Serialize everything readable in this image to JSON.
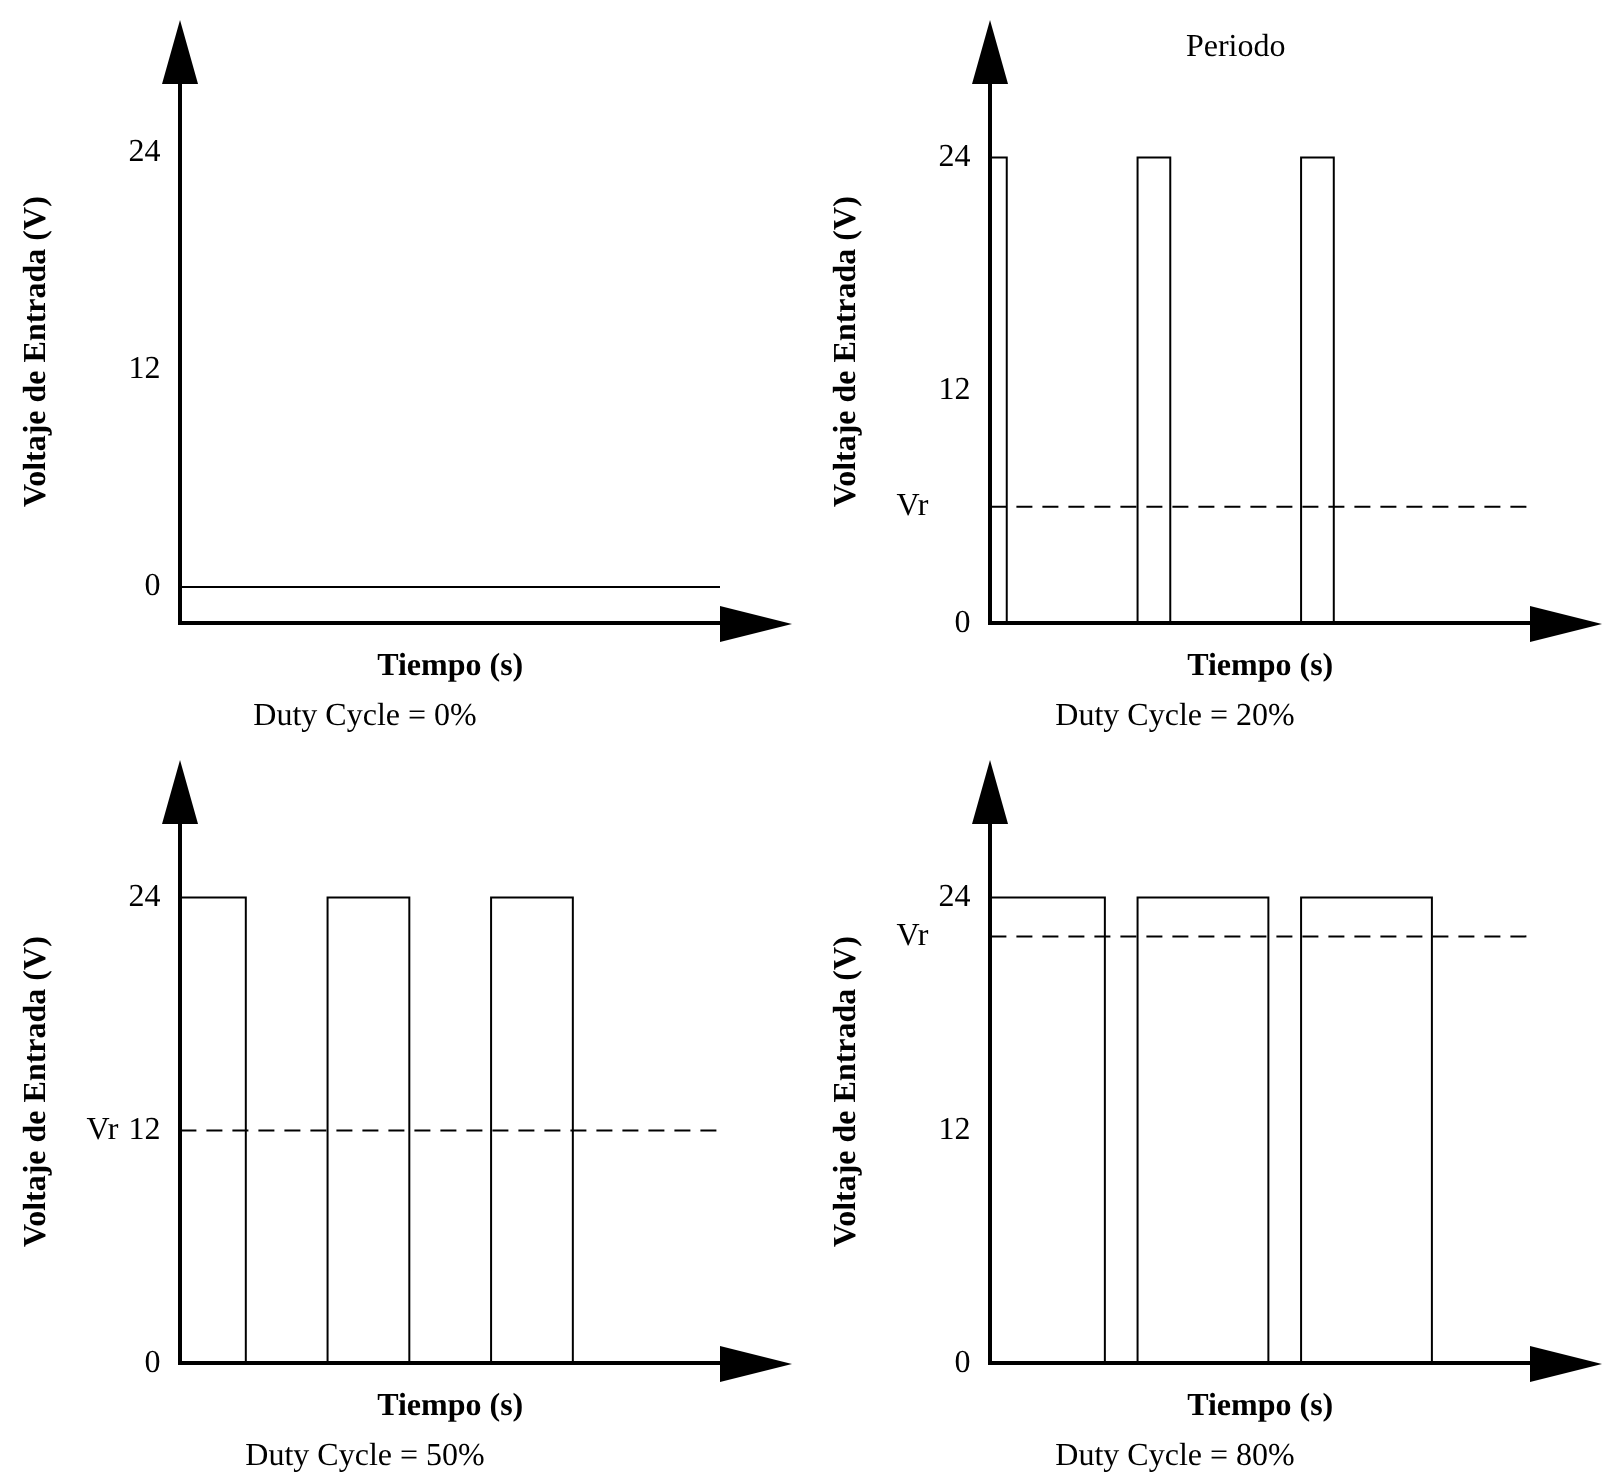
{
  "chart_data": [
    {
      "type": "step",
      "title": "Duty Cycle = 0%",
      "xlabel": "Tiempo (s)",
      "ylabel": "Voltaje de Entrada (V)",
      "color": "#000000",
      "categories": [
        null,
        null,
        null,
        null,
        null,
        null,
        null,
        null,
        null,
        null,
        null,
        null,
        null,
        null,
        null,
        null,
        null,
        null,
        null,
        null,
        null,
        null,
        null,
        null,
        null,
        null,
        null,
        null,
        null,
        null,
        null,
        null,
        null,
        null
      ],
      "values": [
        0,
        0,
        0,
        0,
        0,
        0,
        0,
        0,
        0,
        0,
        0,
        0,
        0,
        0,
        0,
        0,
        0,
        0,
        0,
        0,
        0,
        0,
        0,
        0,
        0,
        0,
        0,
        0,
        0,
        0,
        0,
        0,
        0,
        0
      ],
      "ylim": [
        -2,
        28
      ],
      "yticks": [
        0,
        12,
        24
      ],
      "tick_labels": "y",
      "grid": false
    },
    {
      "type": "step",
      "title": "Duty Cycle = 20%",
      "xlabel": "Tiempo (s)",
      "ylabel": "Voltaje de Entrada (V)",
      "color": "#000000",
      "categories": [
        null,
        null,
        null,
        null,
        null,
        null,
        null,
        null,
        null,
        null,
        null,
        null,
        null,
        null,
        null,
        null,
        null,
        null,
        null,
        null,
        null,
        null,
        null,
        null,
        null,
        null,
        null,
        null,
        null,
        null,
        null,
        null,
        null,
        null
      ],
      "values": [
        24,
        24,
        0,
        0,
        0,
        0,
        0,
        0,
        0,
        0,
        24,
        24,
        0,
        0,
        0,
        0,
        0,
        0,
        0,
        0,
        24,
        24,
        0,
        0,
        0,
        0,
        0,
        0,
        0,
        0,
        0,
        0,
        0,
        0
      ],
      "ylim": [
        0,
        28
      ],
      "yticks": [
        0,
        12,
        24
      ],
      "tick_labels": "y",
      "grid": false,
      "ref_lines": [
        {
          "axis": "y",
          "value": 6,
          "label": "Vr",
          "line_style": "dashed"
        }
      ],
      "annotations": [
        "Periodo"
      ]
    },
    {
      "type": "step",
      "title": "Duty Cycle = 50%",
      "xlabel": "Tiempo (s)",
      "ylabel": "Voltaje de Entrada (V)",
      "color": "#000000",
      "categories": [
        null,
        null,
        null,
        null,
        null,
        null,
        null,
        null,
        null,
        null,
        null,
        null,
        null,
        null,
        null,
        null,
        null,
        null,
        null,
        null,
        null,
        null,
        null,
        null,
        null,
        null,
        null,
        null,
        null,
        null,
        null,
        null,
        null,
        null
      ],
      "values": [
        24,
        24,
        24,
        24,
        24,
        0,
        0,
        0,
        0,
        0,
        24,
        24,
        24,
        24,
        24,
        0,
        0,
        0,
        0,
        0,
        24,
        24,
        24,
        24,
        24,
        0,
        0,
        0,
        0,
        0,
        0,
        0,
        0,
        0
      ],
      "ylim": [
        0,
        28
      ],
      "yticks": [
        0,
        12,
        24
      ],
      "tick_labels": "y",
      "grid": false,
      "ref_lines": [
        {
          "axis": "y",
          "value": 12,
          "label": "Vr",
          "line_style": "dashed"
        }
      ]
    },
    {
      "type": "step",
      "title": "Duty Cycle = 80%",
      "xlabel": "Tiempo (s)",
      "ylabel": "Voltaje de Entrada (V)",
      "color": "#000000",
      "categories": [
        null,
        null,
        null,
        null,
        null,
        null,
        null,
        null,
        null,
        null,
        null,
        null,
        null,
        null,
        null,
        null,
        null,
        null,
        null,
        null,
        null,
        null,
        null,
        null,
        null,
        null,
        null,
        null,
        null,
        null,
        null,
        null,
        null,
        null
      ],
      "values": [
        24,
        24,
        24,
        24,
        24,
        24,
        24,
        24,
        0,
        0,
        24,
        24,
        24,
        24,
        24,
        24,
        24,
        24,
        0,
        0,
        24,
        24,
        24,
        24,
        24,
        24,
        24,
        24,
        0,
        0,
        0,
        0,
        0,
        0
      ],
      "ylim": [
        0,
        28
      ],
      "yticks": [
        0,
        12,
        24
      ],
      "tick_labels": "y",
      "grid": false,
      "ref_lines": [
        {
          "axis": "y",
          "value": 22,
          "label": "Vr",
          "line_style": "dashed"
        }
      ]
    }
  ]
}
